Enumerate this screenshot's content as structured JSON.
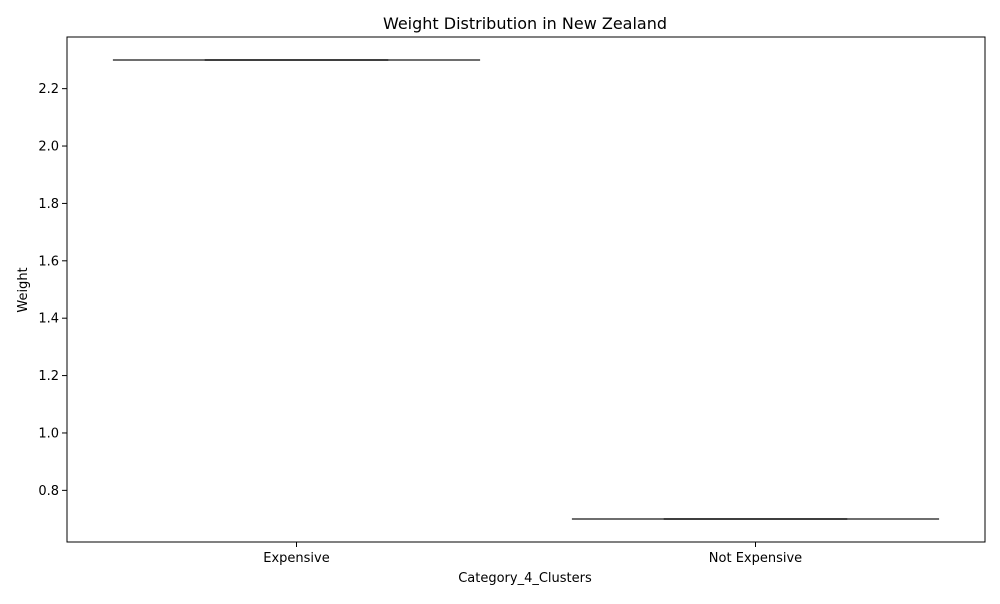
{
  "chart_data": {
    "type": "box",
    "title": "Weight Distribution in New Zealand",
    "xlabel": "Category_4_Clusters",
    "ylabel": "Weight",
    "categories": [
      "Expensive",
      "Not Expensive"
    ],
    "values": [
      2.3,
      0.7
    ],
    "ylim": [
      0.62,
      2.38
    ],
    "yticks": [
      0.8,
      1.0,
      1.2,
      1.4,
      1.6,
      1.8,
      2.0,
      2.2
    ],
    "ytick_labels": [
      "0.8",
      "1.0",
      "1.2",
      "1.4",
      "1.6",
      "1.8",
      "2.0",
      "2.2"
    ],
    "grid": false,
    "colors": {
      "line": "#3f3f3f",
      "axis": "#000000"
    }
  }
}
